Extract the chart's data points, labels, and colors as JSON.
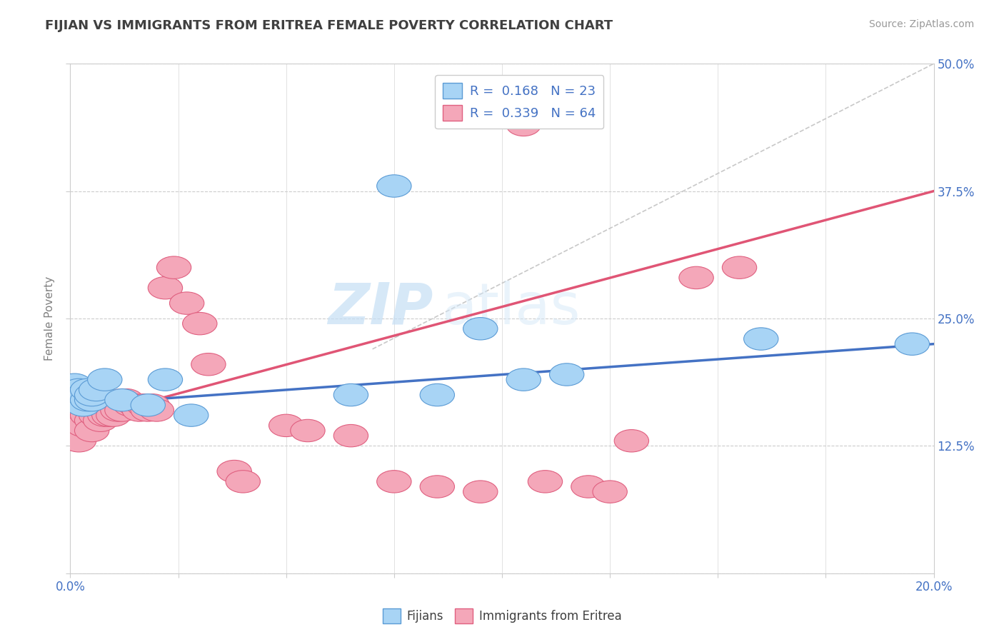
{
  "title": "FIJIAN VS IMMIGRANTS FROM ERITREA FEMALE POVERTY CORRELATION CHART",
  "source": "Source: ZipAtlas.com",
  "ylabel_label": "Female Poverty",
  "x_ticks": [
    0.0,
    0.025,
    0.05,
    0.075,
    0.1,
    0.125,
    0.15,
    0.175,
    0.2
  ],
  "y_ticks": [
    0.0,
    0.125,
    0.25,
    0.375,
    0.5
  ],
  "xlim": [
    0.0,
    0.2
  ],
  "ylim": [
    0.0,
    0.5
  ],
  "fijian_color": "#a8d4f5",
  "fijian_edge": "#5b9bd5",
  "eritrea_color": "#f4a7b9",
  "eritrea_edge": "#e06080",
  "fijian_R": 0.168,
  "fijian_N": 23,
  "eritrea_R": 0.339,
  "eritrea_N": 64,
  "fijian_scatter_x": [
    0.001,
    0.001,
    0.002,
    0.003,
    0.003,
    0.004,
    0.004,
    0.005,
    0.005,
    0.006,
    0.008,
    0.012,
    0.018,
    0.022,
    0.028,
    0.065,
    0.075,
    0.085,
    0.095,
    0.105,
    0.115,
    0.16,
    0.195
  ],
  "fijian_scatter_y": [
    0.175,
    0.185,
    0.18,
    0.165,
    0.175,
    0.17,
    0.18,
    0.17,
    0.175,
    0.18,
    0.19,
    0.17,
    0.165,
    0.19,
    0.155,
    0.175,
    0.38,
    0.175,
    0.24,
    0.19,
    0.195,
    0.23,
    0.225
  ],
  "eritrea_scatter_x": [
    0.001,
    0.001,
    0.001,
    0.001,
    0.002,
    0.002,
    0.002,
    0.002,
    0.002,
    0.003,
    0.003,
    0.003,
    0.003,
    0.003,
    0.004,
    0.004,
    0.004,
    0.005,
    0.005,
    0.005,
    0.005,
    0.006,
    0.006,
    0.006,
    0.007,
    0.007,
    0.007,
    0.008,
    0.008,
    0.009,
    0.009,
    0.01,
    0.01,
    0.011,
    0.012,
    0.012,
    0.013,
    0.014,
    0.015,
    0.016,
    0.017,
    0.018,
    0.019,
    0.02,
    0.022,
    0.024,
    0.027,
    0.03,
    0.032,
    0.038,
    0.04,
    0.05,
    0.055,
    0.065,
    0.075,
    0.085,
    0.095,
    0.11,
    0.12,
    0.125,
    0.13,
    0.145,
    0.155,
    0.105
  ],
  "eritrea_scatter_y": [
    0.175,
    0.165,
    0.155,
    0.145,
    0.17,
    0.16,
    0.15,
    0.14,
    0.13,
    0.18,
    0.17,
    0.16,
    0.155,
    0.145,
    0.175,
    0.165,
    0.155,
    0.17,
    0.16,
    0.15,
    0.14,
    0.175,
    0.165,
    0.155,
    0.17,
    0.16,
    0.15,
    0.165,
    0.155,
    0.165,
    0.155,
    0.165,
    0.155,
    0.16,
    0.17,
    0.16,
    0.17,
    0.165,
    0.165,
    0.16,
    0.165,
    0.16,
    0.165,
    0.16,
    0.28,
    0.3,
    0.265,
    0.245,
    0.205,
    0.1,
    0.09,
    0.145,
    0.14,
    0.135,
    0.09,
    0.085,
    0.08,
    0.09,
    0.085,
    0.08,
    0.13,
    0.29,
    0.3,
    0.44
  ],
  "fijian_trend_x": [
    0.0,
    0.2
  ],
  "fijian_trend_y": [
    0.165,
    0.225
  ],
  "eritrea_trend_x": [
    0.0,
    0.2
  ],
  "eritrea_trend_y": [
    0.148,
    0.375
  ],
  "gray_trend_x": [
    0.07,
    0.2
  ],
  "gray_trend_y": [
    0.22,
    0.5
  ],
  "watermark_zip": "ZIP",
  "watermark_atlas": "atlas",
  "background_color": "#ffffff",
  "grid_color": "#cccccc",
  "title_color": "#404040"
}
